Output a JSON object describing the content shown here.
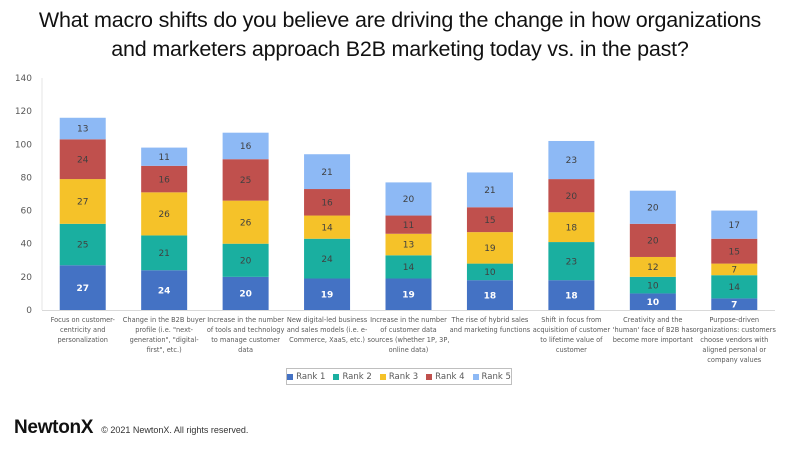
{
  "footer": {
    "logo": "NewtonX",
    "copyright": "© 2021 NewtonX. All rights reserved."
  },
  "chart_data": {
    "type": "bar",
    "stacked": true,
    "title": "What macro shifts do you believe are driving the change in how organizations and marketers approach B2B marketing today vs. in the past?",
    "title_lines": [
      "What macro shifts do you believe are driving the change in how organizations",
      "and marketers approach B2B marketing today vs. in the past?"
    ],
    "xlabel": "",
    "ylabel": "",
    "ylim": [
      0,
      140
    ],
    "yticks": [
      0,
      20,
      40,
      60,
      80,
      100,
      120,
      140
    ],
    "grid": false,
    "legend_position": "bottom",
    "categories": [
      "Focus on customer-centricity and personalization",
      "Change in the B2B buyer profile (i.e. \"next-generation\", \"digital-first\", etc.)",
      "Increase in the number of tools and technology to manage customer data",
      "New digital-led business and sales models (i.e. e-Commerce, XaaS, etc.)",
      "Increase in the number of customer data sources (whether 1P, 3P, online data)",
      "The rise of hybrid sales and marketing functions",
      "Shift in focus from acquisition of customer to lifetime value of customer",
      "Creativity and the 'human' face of B2B has become more important",
      "Purpose-driven organizations: customers choose vendors with aligned personal or company values"
    ],
    "category_lines": [
      [
        "Focus on customer-",
        "centricity and",
        "personalization"
      ],
      [
        "Change in the B2B buyer",
        "profile (i.e. \"next-",
        "generation\", \"digital-",
        "first\", etc.)"
      ],
      [
        "Increase in the number",
        "of tools and technology",
        "to manage customer",
        "data"
      ],
      [
        "New digital-led business",
        "and sales models (i.e. e-",
        "Commerce, XaaS, etc.)"
      ],
      [
        "Increase in the number",
        "of customer data",
        "sources (whether 1P, 3P,",
        "online data)"
      ],
      [
        "The rise of hybrid sales",
        "and marketing functions"
      ],
      [
        "Shift in focus from",
        "acquisition of customer",
        "to lifetime value of",
        "customer"
      ],
      [
        "Creativity and the",
        "'human' face of B2B has",
        "become more important"
      ],
      [
        "Purpose-driven",
        "organizations: customers",
        "choose vendors with",
        "aligned personal or",
        "company values"
      ]
    ],
    "series": [
      {
        "name": "Rank 1",
        "color": "#4472C4",
        "label_color": "#ffffff",
        "values": [
          27,
          24,
          20,
          19,
          19,
          18,
          18,
          10,
          7
        ]
      },
      {
        "name": "Rank 2",
        "color": "#1AAFA0",
        "label_color": "#404040",
        "values": [
          25,
          21,
          20,
          24,
          14,
          10,
          23,
          10,
          14
        ]
      },
      {
        "name": "Rank 3",
        "color": "#F5C229",
        "label_color": "#404040",
        "values": [
          27,
          26,
          26,
          14,
          13,
          19,
          18,
          12,
          7
        ]
      },
      {
        "name": "Rank 4",
        "color": "#C0504D",
        "label_color": "#404040",
        "values": [
          24,
          16,
          25,
          16,
          11,
          15,
          20,
          20,
          15
        ]
      },
      {
        "name": "Rank 5",
        "color": "#8DB9F5",
        "label_color": "#404040",
        "values": [
          13,
          11,
          16,
          21,
          20,
          21,
          23,
          20,
          17
        ]
      }
    ]
  }
}
